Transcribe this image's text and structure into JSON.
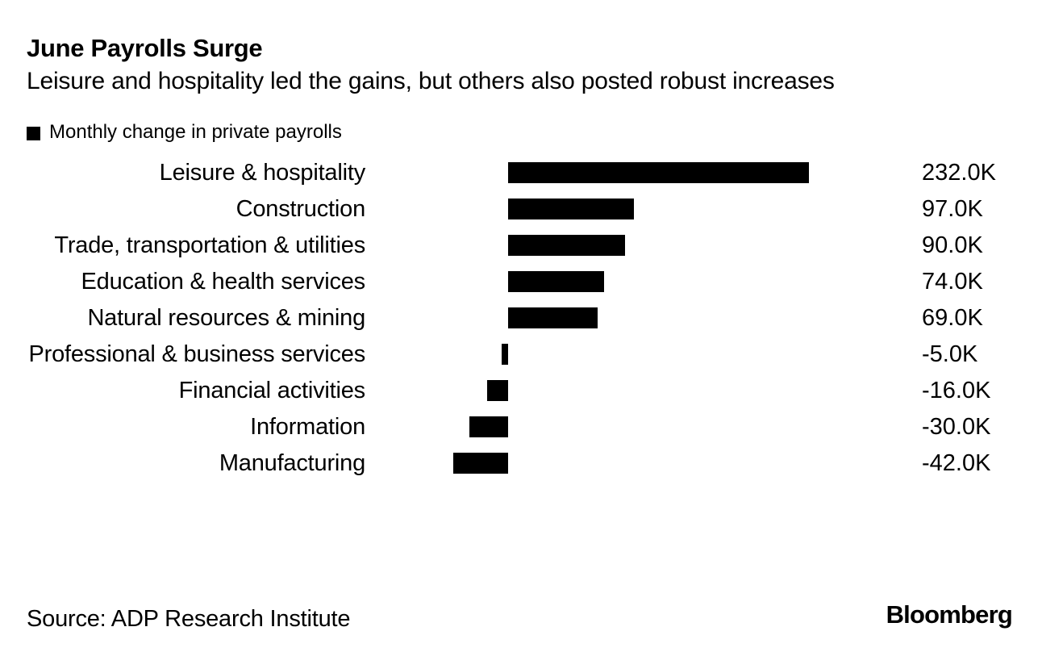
{
  "header": {
    "title": "June Payrolls Surge",
    "subtitle": "Leisure and hospitality led the gains, but others also posted robust increases"
  },
  "legend": {
    "swatch_color": "#000000",
    "label": "Monthly change in private payrolls"
  },
  "chart_data": {
    "type": "bar",
    "orientation": "horizontal",
    "title": "June Payrolls Surge",
    "series_label": "Monthly change in private payrolls",
    "unit": "K (thousands of jobs)",
    "categories": [
      "Leisure & hospitality",
      "Construction",
      "Trade, transportation & utilities",
      "Education & health services",
      "Natural resources & mining",
      "Professional & business services",
      "Financial activities",
      "Information",
      "Manufacturing"
    ],
    "values": [
      232.0,
      97.0,
      90.0,
      74.0,
      69.0,
      -5.0,
      -16.0,
      -30.0,
      -42.0
    ],
    "value_labels": [
      "232.0K",
      "97.0K",
      "90.0K",
      "74.0K",
      "69.0K",
      "-5.0K",
      "-16.0K",
      "-30.0K",
      "-42.0K"
    ],
    "xlim": [
      -42,
      232
    ],
    "bar_color": "#000000",
    "grid": false,
    "value_label_position": "right",
    "legend_position": "top-left"
  },
  "footer": {
    "source": "Source: ADP Research Institute",
    "brand": "Bloomberg"
  }
}
